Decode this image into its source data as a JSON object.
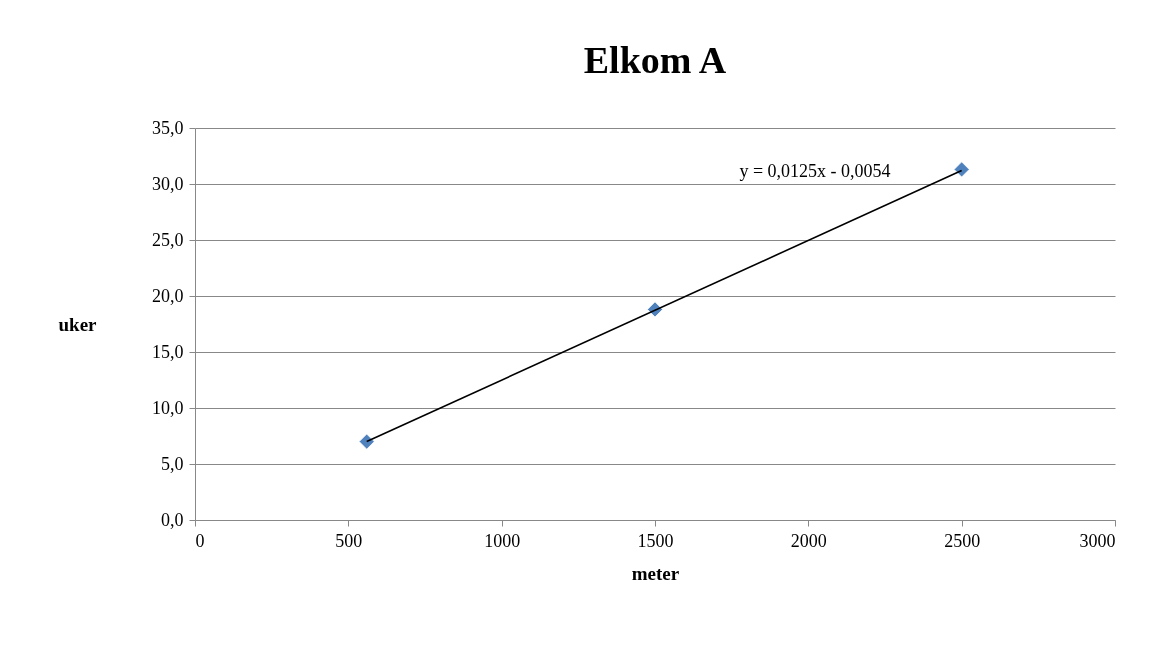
{
  "chart_data": {
    "type": "scatter",
    "title": "Elkom A",
    "xlabel": "meter",
    "ylabel": "uker",
    "xlim": [
      0,
      3000
    ],
    "xticks": [
      0,
      500,
      1000,
      1500,
      2000,
      2500,
      3000
    ],
    "ylim": [
      0,
      35
    ],
    "yticks": [
      {
        "value": 0,
        "label": "0,0"
      },
      {
        "value": 5,
        "label": "5,0"
      },
      {
        "value": 10,
        "label": "10,0"
      },
      {
        "value": 15,
        "label": "15,0"
      },
      {
        "value": 20,
        "label": "20,0"
      },
      {
        "value": 25,
        "label": "25,0"
      },
      {
        "value": 30,
        "label": "30,0"
      },
      {
        "value": 35,
        "label": "35,0"
      }
    ],
    "grid": "y",
    "marker": "diamond",
    "series": [
      {
        "color": "#4f81bd",
        "x": [
          560,
          1500,
          2500
        ],
        "values": [
          7.0,
          18.8,
          31.3
        ]
      },
      {
        "type": "line",
        "color": "#000000",
        "x": [
          560,
          2500
        ],
        "values": [
          7.0,
          31.2
        ],
        "marker": "none",
        "line_style": "solid"
      }
    ],
    "annotations": [
      "y = 0,0125x - 0,0054"
    ]
  }
}
